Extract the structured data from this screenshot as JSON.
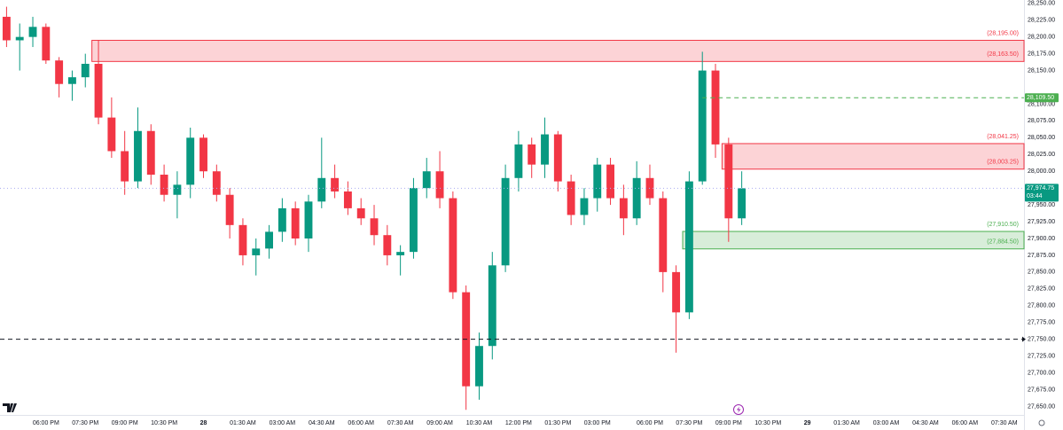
{
  "chart_data": {
    "type": "candlestick",
    "categories": [
      null,
      null,
      null,
      "06:00 PM",
      null,
      null,
      "07:30 PM",
      null,
      null,
      "09:00 PM",
      null,
      null,
      "10:30 PM",
      null,
      null,
      "28",
      null,
      null,
      "01:30 AM",
      null,
      null,
      "03:00 AM",
      null,
      null,
      "04:30 AM",
      null,
      null,
      "06:00 AM",
      null,
      null,
      "07:30 AM",
      null,
      null,
      "09:00 AM",
      null,
      null,
      "10:30 AM",
      null,
      null,
      "12:00 PM",
      null,
      null,
      "01:30 PM",
      null,
      null,
      "03:00 PM",
      null,
      null,
      null,
      "06:00 PM",
      null,
      null,
      "07:30 PM",
      null,
      null,
      "09:00 PM",
      null,
      null,
      "10:30 PM",
      null,
      null,
      "29",
      null,
      null,
      "01:30 AM",
      null,
      null,
      "03:00 AM",
      null,
      null,
      "04:30 AM",
      null,
      null,
      "06:00 AM",
      null,
      null,
      "07:30 AM",
      null
    ],
    "open": [
      28230,
      28195,
      28200,
      28215,
      28165,
      28130,
      28140,
      28160,
      28080,
      28030,
      27985,
      28060,
      27995,
      27965,
      27980,
      28050,
      28000,
      27965,
      27920,
      27875,
      27885,
      27910,
      27945,
      27900,
      27955,
      27990,
      27970,
      27945,
      27930,
      27905,
      27875,
      27880,
      27975,
      28000,
      27960,
      27820,
      27680,
      27740,
      27860,
      27990,
      28040,
      28010,
      28055,
      27985,
      27935,
      27960,
      28010,
      27960,
      27930,
      27990,
      27960,
      27850,
      27790,
      27985,
      28150,
      28040,
      27930,
      null,
      null,
      null,
      null,
      null,
      null,
      null,
      null,
      null,
      null,
      null,
      null,
      null,
      null,
      null,
      null,
      null,
      null,
      null,
      null,
      null
    ],
    "high": [
      28245,
      28220,
      28230,
      28220,
      28170,
      28150,
      28175,
      28195,
      28110,
      28060,
      28095,
      28070,
      28010,
      28000,
      28065,
      28055,
      28010,
      27975,
      27930,
      27900,
      27920,
      27960,
      27955,
      27965,
      28050,
      28010,
      27985,
      27960,
      27950,
      27920,
      27890,
      27990,
      28020,
      28030,
      27970,
      27830,
      27760,
      27880,
      28010,
      28060,
      28050,
      28080,
      28060,
      27995,
      27975,
      28020,
      28020,
      27980,
      28015,
      28010,
      27970,
      27860,
      28000,
      28178,
      28160,
      28050,
      28000,
      null,
      null,
      null,
      null,
      null,
      null,
      null,
      null,
      null,
      null,
      null,
      null,
      null,
      null,
      null,
      null,
      null,
      null,
      null,
      null,
      null
    ],
    "low": [
      28185,
      28150,
      28185,
      28160,
      28110,
      28105,
      28125,
      28070,
      28020,
      27965,
      27975,
      27980,
      27955,
      27930,
      27960,
      27990,
      27955,
      27900,
      27860,
      27845,
      27870,
      27895,
      27890,
      27880,
      27945,
      27960,
      27935,
      27920,
      27890,
      27860,
      27845,
      27870,
      27960,
      27945,
      27810,
      27645,
      27660,
      27720,
      27850,
      27970,
      27990,
      27990,
      27970,
      27920,
      27920,
      27940,
      27950,
      27905,
      27920,
      27950,
      27820,
      27730,
      27780,
      27980,
      28020,
      27895,
      27920,
      null,
      null,
      null,
      null,
      null,
      null,
      null,
      null,
      null,
      null,
      null,
      null,
      null,
      null,
      null,
      null,
      null,
      null,
      null,
      null,
      null
    ],
    "close": [
      28195,
      28200,
      28215,
      28165,
      28130,
      28140,
      28160,
      28080,
      28030,
      27985,
      28060,
      27995,
      27965,
      27980,
      28050,
      28000,
      27965,
      27920,
      27875,
      27885,
      27910,
      27945,
      27900,
      27955,
      27990,
      27970,
      27945,
      27930,
      27905,
      27875,
      27880,
      27975,
      28000,
      27960,
      27820,
      27680,
      27740,
      27860,
      27990,
      28040,
      28010,
      28055,
      27985,
      27935,
      27960,
      28010,
      27960,
      27930,
      27990,
      27960,
      27850,
      27790,
      27985,
      28150,
      28040,
      27930,
      27974.75,
      null,
      null,
      null,
      null,
      null,
      null,
      null,
      null,
      null,
      null,
      null,
      null,
      null,
      null,
      null,
      null,
      null,
      null,
      null,
      null,
      null
    ],
    "up_color": "#089981",
    "down_color": "#f23645",
    "ylim": [
      27640,
      28255
    ],
    "yticks": [
      {
        "value": 28250,
        "label": "28,250.00"
      },
      {
        "value": 28225,
        "label": "28,225.00"
      },
      {
        "value": 28200,
        "label": "28,200.00"
      },
      {
        "value": 28175,
        "label": "28,175.00"
      },
      {
        "value": 28150,
        "label": "28,150.00"
      },
      {
        "value": 28100,
        "label": "28,100.00"
      },
      {
        "value": 28075,
        "label": "28,075.00"
      },
      {
        "value": 28050,
        "label": "28,050.00"
      },
      {
        "value": 28025,
        "label": "28,025.00"
      },
      {
        "value": 28000,
        "label": "28,000.00"
      },
      {
        "value": 27950,
        "label": "27,950.00"
      },
      {
        "value": 27925,
        "label": "27,925.00"
      },
      {
        "value": 27900,
        "label": "27,900.00"
      },
      {
        "value": 27875,
        "label": "27,875.00"
      },
      {
        "value": 27850,
        "label": "27,850.00"
      },
      {
        "value": 27825,
        "label": "27,825.00"
      },
      {
        "value": 27800,
        "label": "27,800.00"
      },
      {
        "value": 27775,
        "label": "27,775.00"
      },
      {
        "value": 27750,
        "label": "27,750.00"
      },
      {
        "value": 27725,
        "label": "27,725.00"
      },
      {
        "value": 27700,
        "label": "27,700.00"
      },
      {
        "value": 27675,
        "label": "27,675.00"
      },
      {
        "value": 27650,
        "label": "27,650.00"
      }
    ],
    "zones": [
      {
        "top": 28195,
        "bottom": 28163.5,
        "top_label": "(28,195.00)",
        "bottom_label": "(28,163.50)",
        "start": 7,
        "color": "#f23645"
      },
      {
        "top": 28041.25,
        "bottom": 28003.25,
        "top_label": "(28,041.25)",
        "bottom_label": "(28,003.25)",
        "start": 55,
        "color": "#f23645"
      },
      {
        "top": 27910.5,
        "bottom": 27884.5,
        "top_label": "(27,910.50)",
        "bottom_label": "(27,884.50)",
        "start": 52,
        "color": "#4caf50"
      }
    ],
    "price_lines": [
      {
        "value": 28109.5,
        "label": "28,109.50",
        "start": 53,
        "color": "#4caf50",
        "line_color": "#4caf50",
        "style": "dashed"
      },
      {
        "value": 27974.75,
        "label": "27,974.75",
        "countdown": "03:44",
        "color": "#089981",
        "line_color": "#a9acf0",
        "style": "dotted"
      },
      {
        "value": 27750,
        "line_color": "#131722",
        "style": "dashed"
      }
    ]
  }
}
